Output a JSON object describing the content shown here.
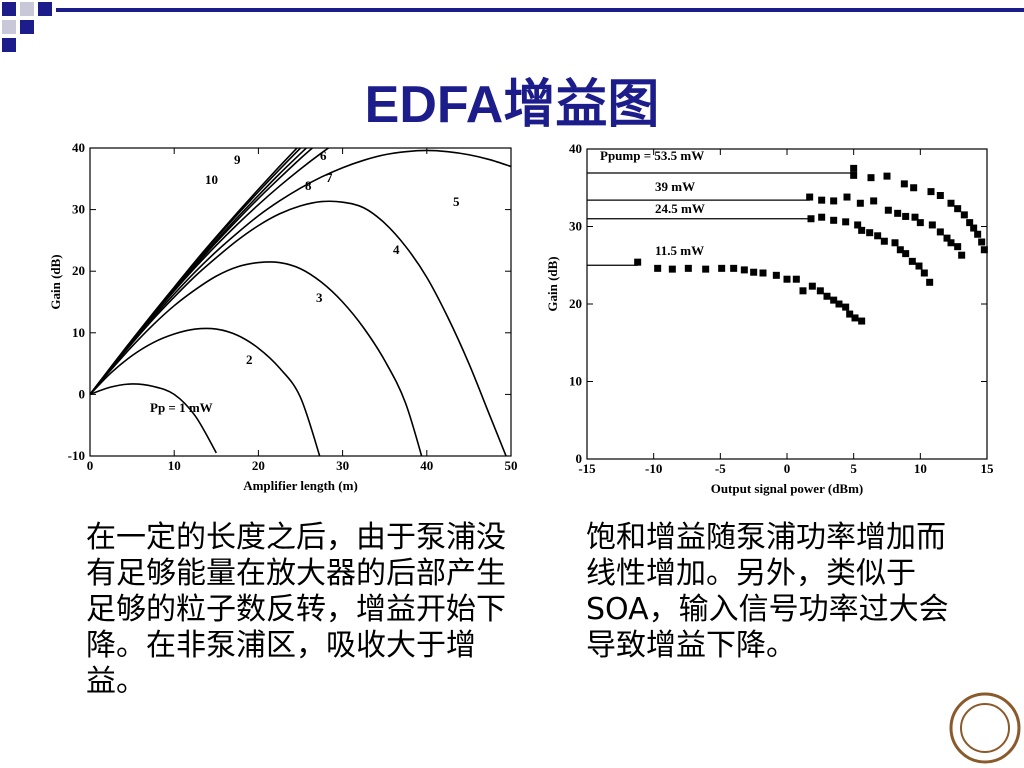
{
  "header": {
    "title": "EDFA增益图"
  },
  "chart_data": [
    {
      "type": "line",
      "color": "#000000",
      "xlabel": "Amplifier length (m)",
      "ylabel": "Gain (dB)",
      "xlim": [
        0,
        50
      ],
      "ylim": [
        -10,
        40
      ],
      "xticks": [
        0,
        10,
        20,
        30,
        40,
        50
      ],
      "yticks": [
        -10,
        0,
        10,
        20,
        30,
        40
      ],
      "x": [
        0,
        2.5,
        5,
        7.5,
        10,
        12.5,
        15,
        17.5,
        20,
        22.5,
        25,
        27.5,
        30,
        32.5,
        35,
        37.5,
        40,
        42.5,
        45,
        47.5,
        50
      ],
      "series": [
        {
          "name": "Pp = 1 mW",
          "values": [
            0,
            1.2,
            1.7,
            1.3,
            0,
            -3.5,
            -9.5,
            null,
            null,
            null,
            null,
            null,
            null,
            null,
            null,
            null,
            null,
            null,
            null,
            null,
            null
          ]
        },
        {
          "name": "2",
          "values": [
            0,
            3.5,
            6.3,
            8.4,
            9.8,
            10.6,
            10.6,
            9.6,
            7.5,
            4.3,
            -0.5,
            -11,
            null,
            null,
            null,
            null,
            null,
            null,
            null,
            null,
            null
          ]
        },
        {
          "name": "3",
          "values": [
            0,
            4,
            7.8,
            11.3,
            14.4,
            17,
            19.2,
            20.7,
            21.4,
            21.4,
            20.4,
            18.2,
            15,
            10.8,
            5.5,
            -1.5,
            -13,
            null,
            null,
            null,
            null
          ]
        },
        {
          "name": "4",
          "values": [
            0,
            4.2,
            8.3,
            12.2,
            15.8,
            19.2,
            22.2,
            25,
            27.4,
            29.3,
            30.6,
            31.3,
            31.2,
            30.3,
            27.8,
            24,
            19,
            12.5,
            5,
            -3.5,
            -12
          ]
        },
        {
          "name": "5",
          "values": [
            0,
            4.3,
            8.5,
            12.5,
            16.3,
            19.9,
            23.2,
            26.2,
            29,
            31.4,
            33.5,
            35.3,
            36.8,
            38,
            38.9,
            39.4,
            39.6,
            39.4,
            38.9,
            38.1,
            37
          ]
        },
        {
          "name": "6",
          "values": [
            0,
            4.4,
            8.7,
            12.8,
            16.8,
            20.6,
            24.2,
            27.6,
            30.8,
            33.8,
            36.6,
            39.2,
            41.6,
            null,
            null,
            null,
            null,
            null,
            null,
            null,
            null
          ]
        },
        {
          "name": "7",
          "values": [
            0,
            4.4,
            8.7,
            12.9,
            17,
            20.9,
            24.7,
            28.3,
            31.8,
            35.1,
            38.3,
            41.3,
            null,
            null,
            null,
            null,
            null,
            null,
            null,
            null,
            null
          ]
        },
        {
          "name": "8",
          "values": [
            0,
            4.4,
            8.8,
            13,
            17.1,
            21.1,
            25,
            28.7,
            32.3,
            35.8,
            39.1,
            42.3,
            null,
            null,
            null,
            null,
            null,
            null,
            null,
            null,
            null
          ]
        },
        {
          "name": "9",
          "values": [
            0,
            4.4,
            8.8,
            13.1,
            17.3,
            21.4,
            25.4,
            29.2,
            32.9,
            36.5,
            40,
            43.4,
            null,
            null,
            null,
            null,
            null,
            null,
            null,
            null,
            null
          ]
        },
        {
          "name": "10",
          "values": [
            0,
            4.5,
            8.9,
            13.2,
            17.4,
            21.6,
            25.6,
            29.5,
            33.3,
            37,
            40.6,
            null,
            null,
            null,
            null,
            null,
            null,
            null,
            null,
            null,
            null
          ]
        }
      ]
    },
    {
      "type": "scatter",
      "color": "#000000",
      "xlabel": "Output signal power (dBm)",
      "ylabel": "Gain (dB)",
      "xlim": [
        -15,
        15
      ],
      "ylim": [
        0,
        40
      ],
      "xticks": [
        -15,
        -10,
        -5,
        0,
        5,
        10,
        15
      ],
      "yticks": [
        0,
        10,
        20,
        30,
        40
      ],
      "series": [
        {
          "name": "Ppump = 53.5 mW",
          "level": 36.9,
          "x": [
            5,
            5,
            6.3,
            7.5,
            8.8,
            9.5,
            10.8,
            11.5,
            12.3,
            12.8,
            13.3,
            13.7,
            14,
            14.3,
            14.6,
            14.8
          ],
          "values": [
            37.5,
            36.6,
            36.3,
            36.5,
            35.5,
            35,
            34.5,
            34,
            33,
            32.3,
            31.5,
            30.5,
            29.8,
            29,
            28,
            27
          ]
        },
        {
          "name": "39 mW",
          "level": 33.4,
          "x": [
            1.7,
            2.6,
            3.5,
            4.5,
            5.5,
            6.5,
            7.6,
            8.3,
            8.9,
            9.6,
            10,
            10.9,
            11.5,
            12,
            12.3,
            12.8,
            13.1
          ],
          "values": [
            33.8,
            33.4,
            33.3,
            33.8,
            33,
            33.3,
            32.1,
            31.7,
            31.3,
            31.2,
            30.5,
            30.2,
            29.3,
            28.5,
            27.9,
            27.4,
            26.3
          ]
        },
        {
          "name": "24.5 mW",
          "level": 31,
          "x": [
            1.8,
            2.6,
            3.5,
            4.4,
            5.3,
            5.6,
            6.2,
            6.8,
            7.3,
            8.1,
            8.5,
            8.9,
            9.4,
            9.9,
            10.3,
            10.7
          ],
          "values": [
            31,
            31.2,
            30.8,
            30.6,
            30.2,
            29.5,
            29.2,
            28.8,
            28.1,
            27.9,
            27,
            26.5,
            25.5,
            24.9,
            24,
            22.8
          ]
        },
        {
          "name": "11.5 mW",
          "level": 25,
          "x": [
            -11.2,
            -9.7,
            -8.6,
            -7.4,
            -6.1,
            -4.9,
            -4,
            -3.2,
            -2.5,
            -1.8,
            -0.8,
            0,
            0.7,
            1.2,
            1.9,
            2.5,
            3,
            3.5,
            3.9,
            4.4,
            4.7,
            5.1,
            5.6
          ],
          "values": [
            25.4,
            24.6,
            24.5,
            24.6,
            24.5,
            24.6,
            24.6,
            24.4,
            24.1,
            24,
            23.7,
            23.2,
            23.2,
            21.7,
            22.3,
            21.7,
            21,
            20.5,
            20,
            19.6,
            18.7,
            18.2,
            17.8
          ]
        }
      ]
    }
  ],
  "text": {
    "left": "在一定的长度之后，由于泵浦没有足够能量在放大器的后部产生足够的粒子数反转，增益开始下降。在非泵浦区，吸收大于增益。",
    "right": "饱和增益随泵浦功率增加而线性增加。另外，类似于SOA，输入信号功率过大会导致增益下降。"
  }
}
